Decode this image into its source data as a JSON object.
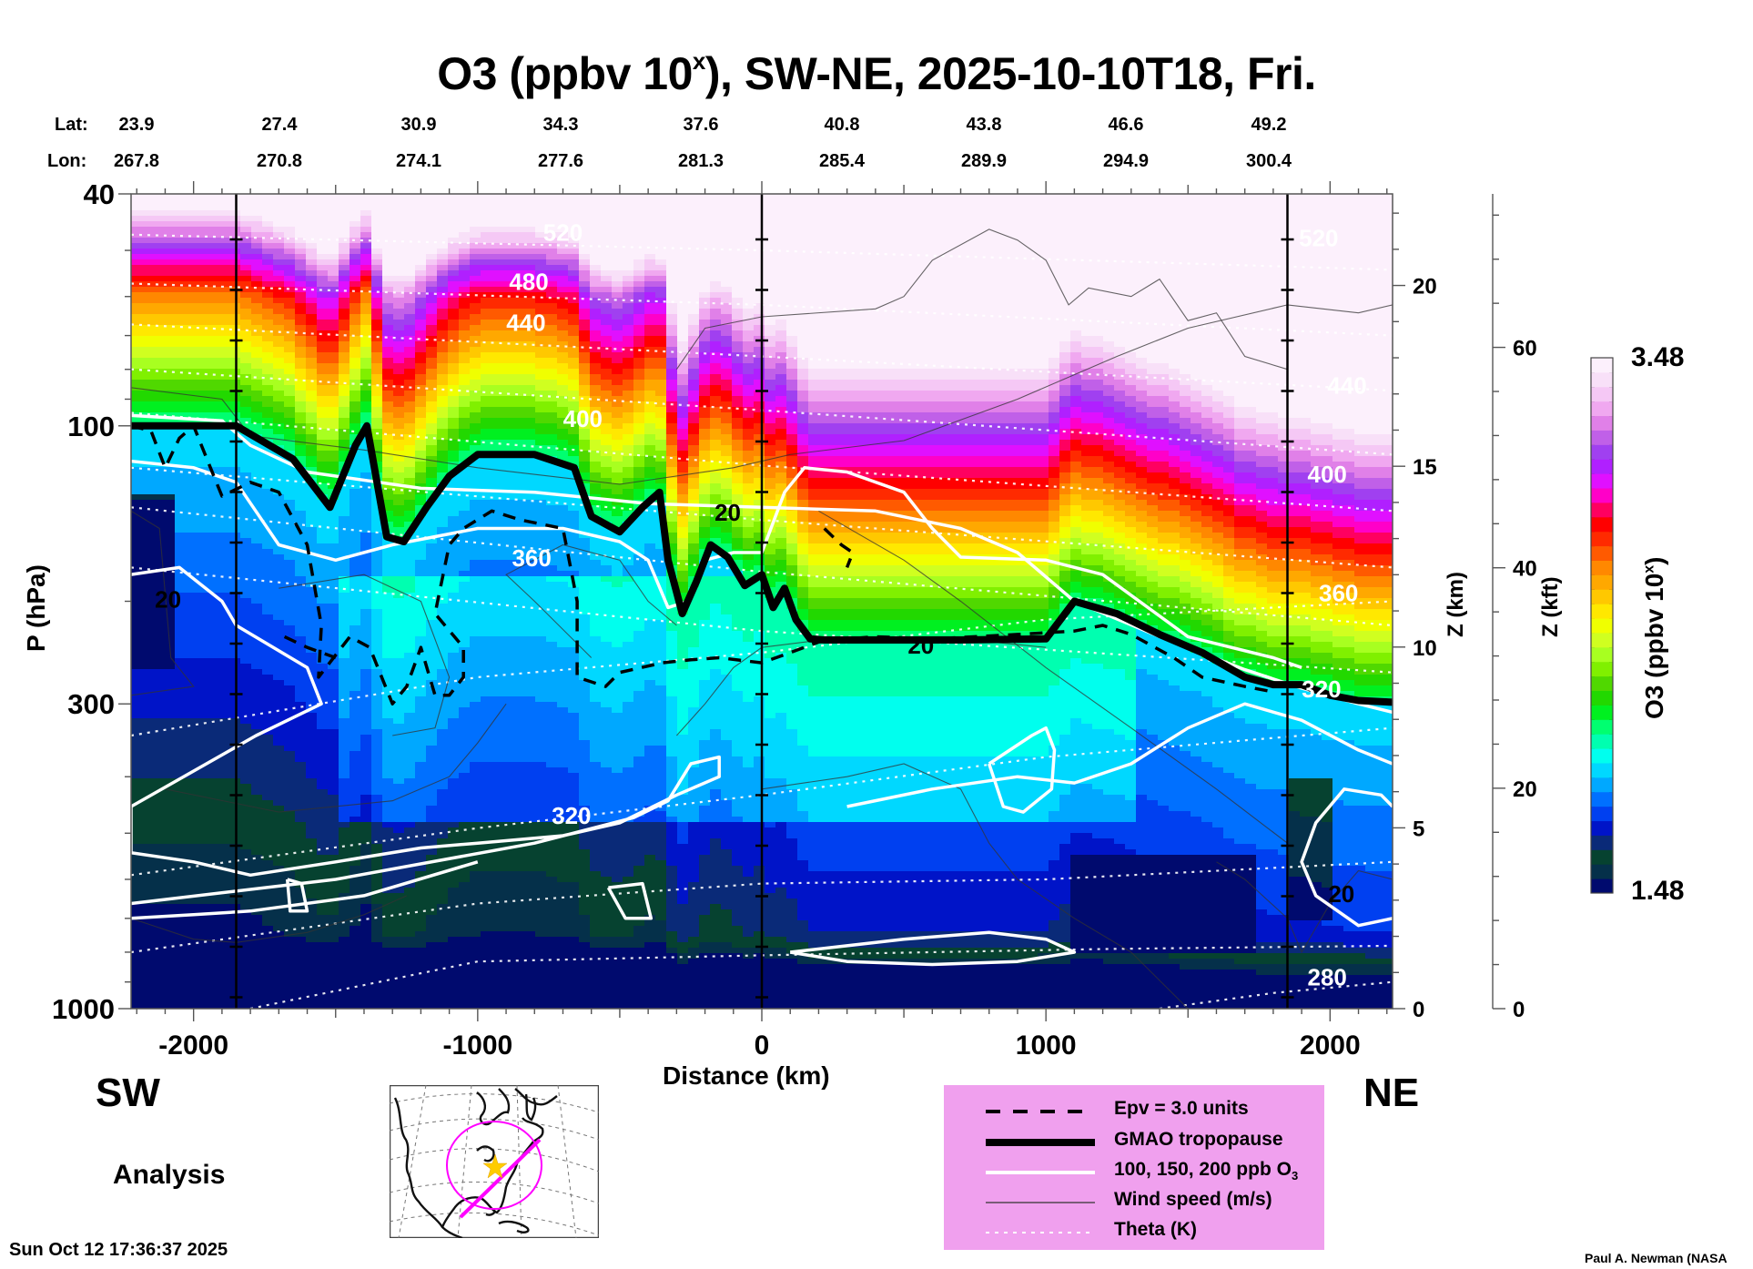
{
  "chart_data": {
    "type": "heatmap",
    "title_prefix": "O3 (ppbv 10",
    "title_sup": "x",
    "title_suffix": "), SW-NE, 2025-10-10T18, Fri.",
    "xlabel": "Distance (km)",
    "ylabel": "P (hPa)",
    "xlim": [
      -2220,
      2220
    ],
    "ylim": [
      1000,
      40
    ],
    "y_scale": "log",
    "x_ticks": [
      -2000,
      -1000,
      0,
      1000,
      2000
    ],
    "x_tick_labels": [
      "-2000",
      "-1000",
      "0",
      "1000",
      "2000"
    ],
    "y_ticks": [
      40,
      100,
      300,
      1000
    ],
    "y_tick_labels": [
      "40",
      "100",
      "300",
      "1000"
    ],
    "z_km": {
      "label": "Z (km)",
      "ticks": [
        0,
        5,
        10,
        15,
        20
      ],
      "tick_labels": [
        "0",
        "5",
        "10",
        "15",
        "20"
      ]
    },
    "z_kft": {
      "label": "Z (kft)",
      "ticks": [
        0,
        20,
        40,
        60
      ],
      "tick_labels": [
        "0",
        "20",
        "40",
        "60"
      ]
    },
    "lat_label": "Lat:",
    "lon_label": "Lon:",
    "lat": [
      "23.9",
      "27.4",
      "30.9",
      "34.3",
      "37.6",
      "40.8",
      "43.8",
      "46.6",
      "49.2"
    ],
    "lon": [
      "267.8",
      "270.8",
      "274.1",
      "277.6",
      "281.3",
      "285.4",
      "289.9",
      "294.9",
      "300.4"
    ],
    "reference_lines_km": [
      -1850,
      0,
      1850
    ],
    "direction_left": "SW",
    "direction_right": "NE",
    "colorbar": {
      "label_prefix": "O3 (ppbv 10",
      "label_sup": "x",
      "label_suffix": ")",
      "min": 1.48,
      "max": 3.48,
      "min_label": "1.48",
      "max_label": "3.48",
      "colors": [
        "#000a6e",
        "#05304a",
        "#064230",
        "#0a2a78",
        "#0014c8",
        "#0040f0",
        "#0070ff",
        "#00a8ff",
        "#00d8ff",
        "#00ffee",
        "#00ffb0",
        "#00ff70",
        "#00f020",
        "#22d800",
        "#50d800",
        "#80f000",
        "#a8ff20",
        "#d0ff20",
        "#f0ff00",
        "#ffe800",
        "#ffc800",
        "#ffa800",
        "#ff8800",
        "#ff5a00",
        "#ff2a00",
        "#ff0000",
        "#ff0060",
        "#ff00c8",
        "#e010ff",
        "#b020ff",
        "#a040f0",
        "#c060e8",
        "#e080e8",
        "#f0a8f0",
        "#f5c8f5",
        "#f8e0f8",
        "#fcf0fc"
      ]
    },
    "theta_labels": [
      {
        "text": "520",
        "km": -700,
        "hpa": 47
      },
      {
        "text": "480",
        "km": -820,
        "hpa": 57
      },
      {
        "text": "440",
        "km": -830,
        "hpa": 67
      },
      {
        "text": "400",
        "km": -630,
        "hpa": 98
      },
      {
        "text": "360",
        "km": -810,
        "hpa": 170
      },
      {
        "text": "320",
        "km": -670,
        "hpa": 470
      },
      {
        "text": "520",
        "km": 1960,
        "hpa": 48
      },
      {
        "text": "440",
        "km": 2060,
        "hpa": 86
      },
      {
        "text": "400",
        "km": 1990,
        "hpa": 122
      },
      {
        "text": "360",
        "km": 2030,
        "hpa": 195
      },
      {
        "text": "320",
        "km": 1970,
        "hpa": 285
      },
      {
        "text": "280",
        "km": 1990,
        "hpa": 890
      }
    ],
    "wind_labels": [
      {
        "text": "20",
        "km": -2090,
        "hpa": 200
      },
      {
        "text": "20",
        "km": -120,
        "hpa": 142
      },
      {
        "text": "20",
        "km": 560,
        "hpa": 240
      },
      {
        "text": "20",
        "km": 2040,
        "hpa": 640
      }
    ],
    "tropopause_hpa": {
      "km": [
        -2220,
        -1850,
        -1650,
        -1520,
        -1430,
        -1390,
        -1320,
        -1260,
        -1180,
        -1100,
        -1000,
        -800,
        -660,
        -600,
        -500,
        -420,
        -360,
        -330,
        -280,
        -230,
        -180,
        -120,
        -60,
        0,
        40,
        80,
        120,
        170,
        220,
        500,
        700,
        1000,
        1100,
        1250,
        1400,
        1550,
        1700,
        1800,
        1900,
        2000,
        2100,
        2220
      ],
      "hpa": [
        100,
        100,
        114,
        138,
        108,
        100,
        155,
        158,
        138,
        122,
        112,
        112,
        118,
        143,
        152,
        138,
        130,
        170,
        210,
        185,
        160,
        168,
        188,
        180,
        205,
        190,
        215,
        232,
        233,
        233,
        233,
        232,
        200,
        210,
        228,
        245,
        270,
        278,
        278,
        290,
        296,
        298
      ]
    },
    "legend": {
      "items": [
        {
          "label": "Epv = 3.0 units",
          "style": "dashed"
        },
        {
          "label": "GMAO tropopause",
          "style": "thick"
        },
        {
          "label": "100, 150, 200 ppb O",
          "sub": "3",
          "style": "white"
        },
        {
          "label": "Wind speed (m/s)",
          "style": "thin"
        },
        {
          "label": "Theta (K)",
          "style": "dotted"
        }
      ]
    },
    "analysis_label": "Analysis",
    "map_inset": {
      "description": "North America polar map with magenta cross-section line SW-NE and circle, yellow star at center",
      "line_color": "#ff00ff",
      "star_color": "#ffcc00"
    }
  },
  "footer": {
    "timestamp": "Sun Oct 12 17:36:37 2025",
    "credit": "Paul A. Newman (NASA"
  }
}
